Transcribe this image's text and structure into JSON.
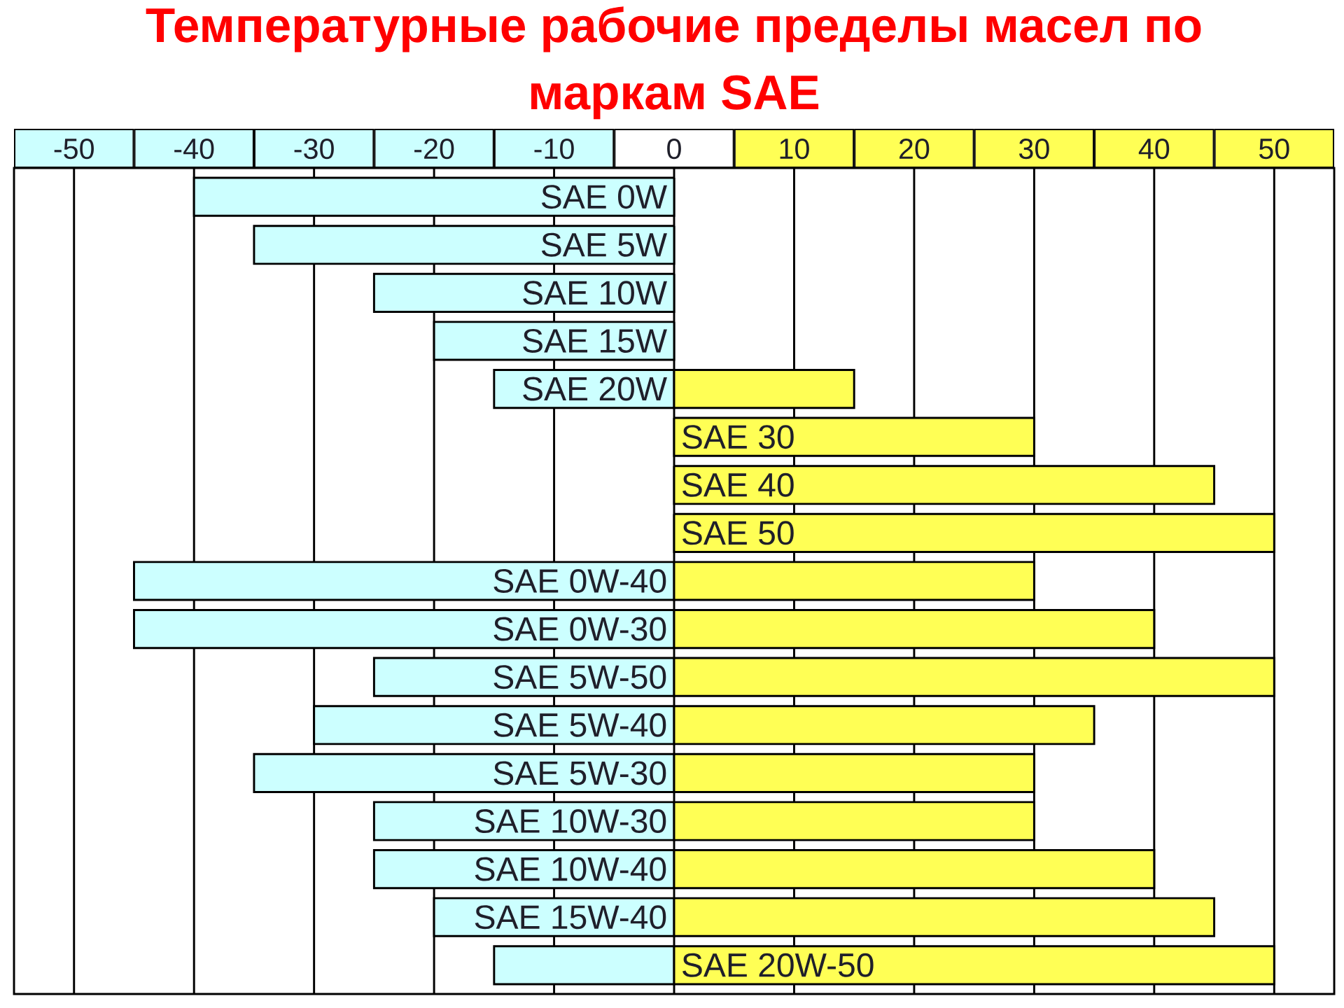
{
  "chart_data": {
    "type": "bar",
    "orientation": "horizontal",
    "stacked": true,
    "title": "Температурные рабочие пределы масел по маркам SAE",
    "categories": [
      "SAE 0W",
      "SAE 5W",
      "SAE 10W",
      "SAE 15W",
      "SAE 20W",
      "SAE 30",
      "SAE 40",
      "SAE 50",
      "SAE 0W-40",
      "SAE 0W-30",
      "SAE 5W-50",
      "SAE 5W-40",
      "SAE 5W-30",
      "SAE 10W-30",
      "SAE 10W-40",
      "SAE 15W-40",
      "SAE 20W-50"
    ],
    "xlim": [
      -55,
      55
    ],
    "xticks": [
      -50,
      -40,
      -30,
      -20,
      -10,
      0,
      10,
      20,
      30,
      40,
      50
    ],
    "grid": "x",
    "series": [
      {
        "color": "#ccffff",
        "values": [
          -40,
          -35,
          -25,
          -20,
          -15,
          null,
          null,
          null,
          -45,
          -45,
          -25,
          -30,
          -35,
          -25,
          -25,
          -20,
          -15
        ]
      },
      {
        "color": "#ffff55",
        "values": [
          null,
          null,
          null,
          null,
          15,
          30,
          45,
          50,
          30,
          40,
          50,
          35,
          30,
          30,
          40,
          45,
          50
        ]
      }
    ]
  }
}
